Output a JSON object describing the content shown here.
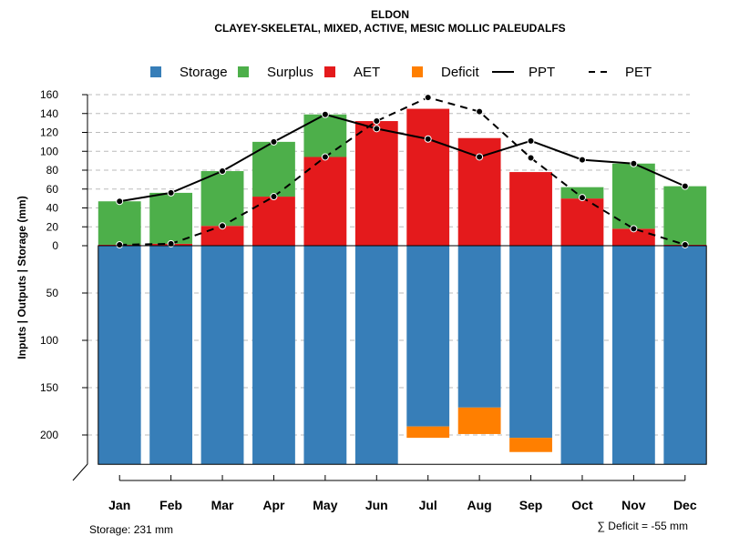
{
  "chart_data": {
    "type": "bar",
    "title": "ELDON",
    "subtitle": "CLAYEY-SKELETAL, MIXED, ACTIVE, MESIC MOLLIC PALEUDALFS",
    "ylabel": "Inputs | Outputs | Storage    (mm)",
    "categories": [
      "Jan",
      "Feb",
      "Mar",
      "Apr",
      "May",
      "Jun",
      "Jul",
      "Aug",
      "Sep",
      "Oct",
      "Nov",
      "Dec"
    ],
    "upper_ylim": [
      0,
      160
    ],
    "upper_ticks": [
      "0",
      "20",
      "40",
      "60",
      "80",
      "100",
      "120",
      "140",
      "160"
    ],
    "lower_ylim": [
      0,
      231
    ],
    "lower_ticks": [
      "50",
      "100",
      "150",
      "200"
    ],
    "series": [
      {
        "name": "Storage",
        "color": "#377EB8",
        "values": [
          231,
          231,
          231,
          231,
          231,
          231,
          191,
          171,
          203,
          231,
          231,
          231
        ]
      },
      {
        "name": "Deficit",
        "color": "#FF7F00",
        "values": [
          0,
          0,
          0,
          0,
          0,
          0,
          12,
          28,
          15,
          0,
          0,
          0
        ]
      },
      {
        "name": "AET",
        "color": "#E41A1C",
        "values": [
          1,
          2,
          21,
          52,
          94,
          132,
          145,
          114,
          78,
          50,
          18,
          1
        ]
      },
      {
        "name": "Surplus",
        "color": "#4DAF4A",
        "values": [
          46,
          54,
          58,
          58,
          45,
          0,
          0,
          0,
          0,
          12,
          69,
          62
        ]
      },
      {
        "name": "PPT",
        "color": "#000000",
        "style": "solid",
        "values": [
          47,
          56,
          79,
          110,
          139,
          124,
          113,
          94,
          111,
          91,
          87,
          63
        ]
      },
      {
        "name": "PET",
        "color": "#000000",
        "style": "dashed",
        "values": [
          1,
          2,
          21,
          52,
          94,
          132,
          157,
          142,
          93,
          51,
          18,
          1
        ]
      }
    ],
    "legend": [
      "Storage",
      "Surplus",
      "AET",
      "Deficit",
      "PPT",
      "PET"
    ],
    "legend_position": "top"
  },
  "footer": {
    "storage_label": "Storage: 231 mm",
    "deficit_label": "∑ Deficit = -55 mm"
  }
}
